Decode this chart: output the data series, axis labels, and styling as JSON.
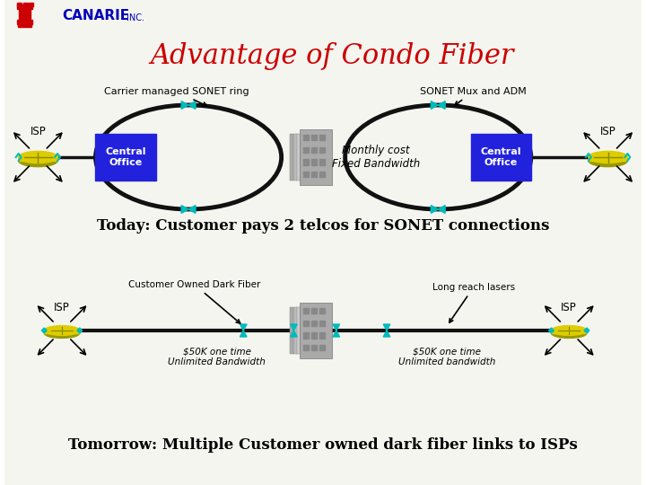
{
  "bg_color": "#ffffff",
  "title": "Advantage of Condo Fiber",
  "title_color": "#cc0000",
  "title_fontsize": 22,
  "canarie_text": "CANARIE",
  "canarie_inc": "INC.",
  "top_section_label1": "Carrier managed SONET ring",
  "top_section_label2": "SONET Mux and ADM",
  "today_text": "Today: Customer pays 2 telcos for SONET connections",
  "tomorrow_text": "Tomorrow: Multiple Customer owned dark fiber links to ISPs",
  "co_label": "Central\nOffice",
  "co_color": "#2222dd",
  "co_text_color": "#ffffff",
  "isp_label": "ISP",
  "isp_color": "#ddcc00",
  "ring_color": "#111111",
  "tick_color": "#00bbbb",
  "monthly_cost_text": "Monthly cost\nFixed Bandwidth",
  "customer_owned_text": "Customer Owned Dark Fiber",
  "long_reach_text": "Long reach lasers",
  "left_cost_text": "$50K one time\nUnlimited Bandwidth",
  "right_cost_text": "$50K one time\nUnlimited bandwidth",
  "isp_label_bottom": "ISP"
}
